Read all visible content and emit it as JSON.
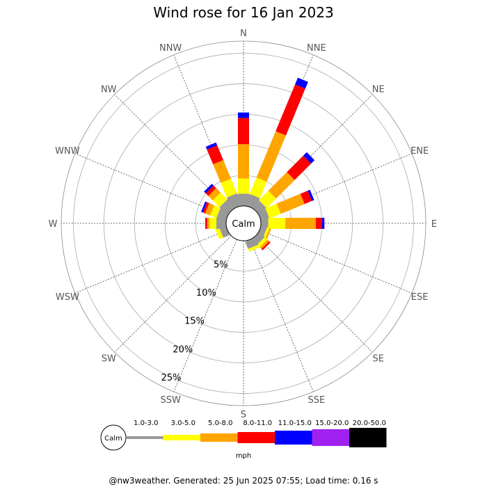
{
  "chart_data": {
    "type": "windrose",
    "title": "Wind rose for 16 Jan 2023",
    "footer": "@nw3weather. Generated: 25 Jun 2025 07:55; Load time: 0.16 s",
    "center_label": "Calm",
    "unit": "mph",
    "directions": [
      "N",
      "NNE",
      "NE",
      "ENE",
      "E",
      "ESE",
      "SE",
      "SSE",
      "S",
      "SSW",
      "SW",
      "WSW",
      "W",
      "WNW",
      "NW",
      "NNW"
    ],
    "ring_labels": [
      "5%",
      "10%",
      "15%",
      "20%",
      "25%"
    ],
    "ring_values": [
      5,
      10,
      15,
      20,
      25
    ],
    "radial_max": 27,
    "speed_bins": [
      {
        "label": "1.0-3.0",
        "color": "#999999"
      },
      {
        "label": "3.0-5.0",
        "color": "#ffff00"
      },
      {
        "label": "5.0-8.0",
        "color": "#ffa500"
      },
      {
        "label": "8.0-11.0",
        "color": "#ff0000"
      },
      {
        "label": "11.0-15.0",
        "color": "#0000ff"
      },
      {
        "label": "15.0-20.0",
        "color": "#a020f0"
      },
      {
        "label": "20.0-50.0",
        "color": "#000000"
      }
    ],
    "series": [
      {
        "direction": "N",
        "values": [
          2.0,
          2.5,
          5.6,
          4.3,
          0.9,
          0,
          0
        ]
      },
      {
        "direction": "NNE",
        "values": [
          2.0,
          2.9,
          8.2,
          8.3,
          1.2,
          0,
          0
        ]
      },
      {
        "direction": "NE",
        "values": [
          1.6,
          2.2,
          4.3,
          3.8,
          0.8,
          0,
          0
        ]
      },
      {
        "direction": "ENE",
        "values": [
          1.4,
          2.0,
          4.2,
          1.3,
          0.4,
          0,
          0
        ]
      },
      {
        "direction": "E",
        "values": [
          1.2,
          2.8,
          5.0,
          1.0,
          0.4,
          0,
          0
        ]
      },
      {
        "direction": "ESE",
        "values": [
          1.0,
          0.4,
          0.3,
          0,
          0,
          0,
          0
        ]
      },
      {
        "direction": "SE",
        "values": [
          1.2,
          0.6,
          0.4,
          0.3,
          0,
          0,
          0
        ]
      },
      {
        "direction": "SSE",
        "values": [
          1.3,
          0.5,
          0,
          0,
          0,
          0,
          0
        ]
      },
      {
        "direction": "S",
        "values": [
          0,
          0,
          0,
          0,
          0,
          0,
          0
        ]
      },
      {
        "direction": "SSW",
        "values": [
          0,
          0,
          0,
          0,
          0,
          0,
          0
        ]
      },
      {
        "direction": "SW",
        "values": [
          0,
          0,
          0,
          0,
          0,
          0,
          0
        ]
      },
      {
        "direction": "WSW",
        "values": [
          1.1,
          0.7,
          0,
          0,
          0,
          0,
          0
        ]
      },
      {
        "direction": "W",
        "values": [
          1.6,
          1.1,
          0.4,
          0.2,
          0.1,
          0,
          0
        ]
      },
      {
        "direction": "WNW",
        "values": [
          1.6,
          1.1,
          0.9,
          0.4,
          0.3,
          0,
          0
        ]
      },
      {
        "direction": "NW",
        "values": [
          1.8,
          1.6,
          1.0,
          0.6,
          0.4,
          0,
          0
        ]
      },
      {
        "direction": "NNW",
        "values": [
          2.1,
          2.6,
          3.3,
          2.6,
          0.5,
          0,
          0
        ]
      }
    ]
  }
}
